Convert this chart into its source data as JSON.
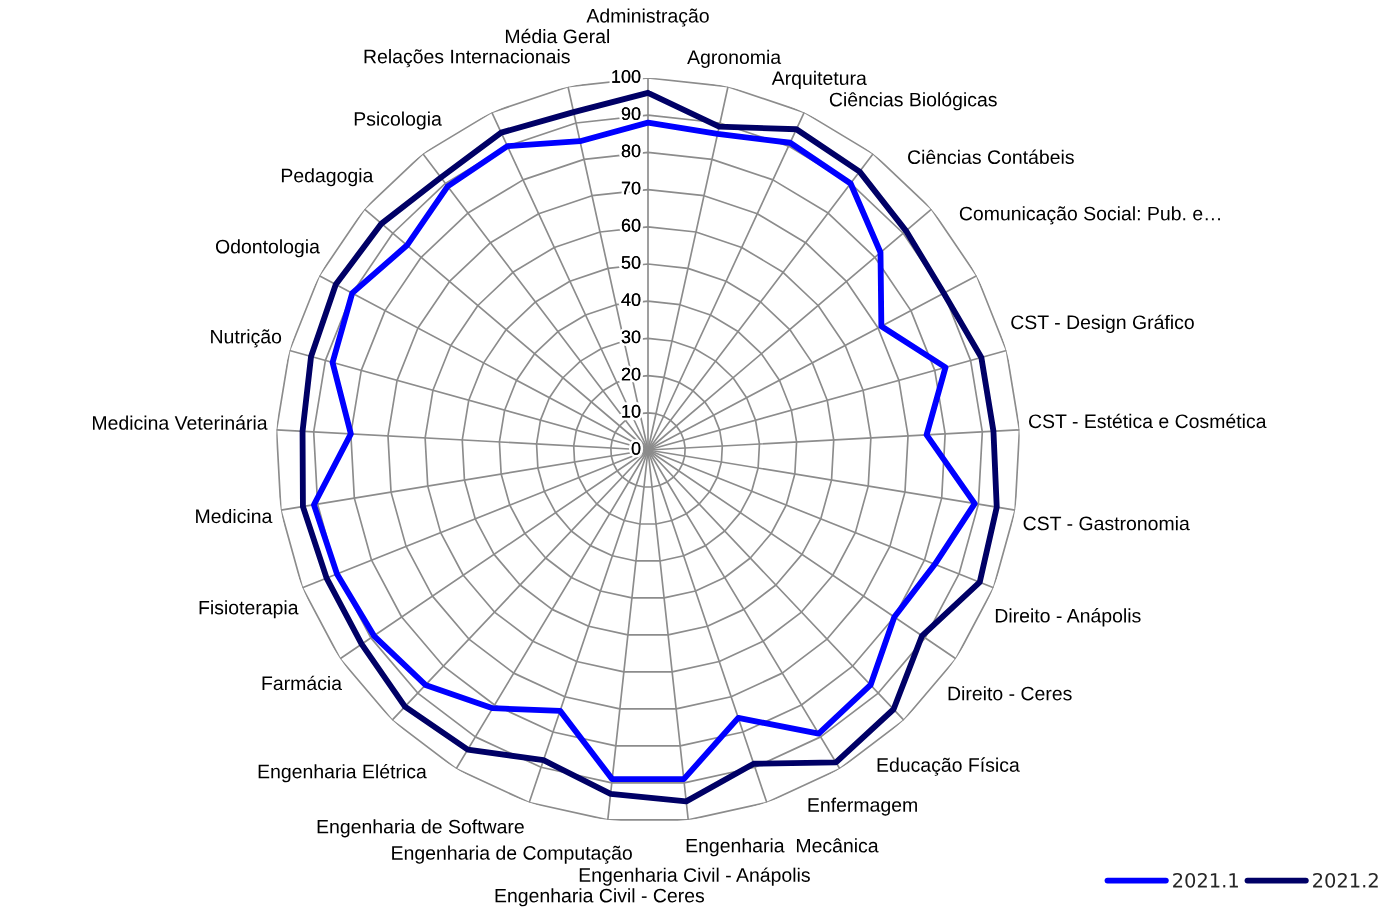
{
  "chart_data": {
    "type": "radar",
    "categories": [
      "Administração",
      "Agronomia",
      "Arquitetura",
      "Ciências Biológicas",
      "Ciências Contábeis",
      "Comunicação Social: Pub. e…",
      "CST - Design Gráfico",
      "CST - Estética e Cosmética",
      "CST - Gastronomia",
      "Direito - Anápolis",
      "Direito - Ceres",
      "Educação Física",
      "Enfermagem",
      "Engenharia  Mecânica",
      "Engenharia Civil - Anápolis",
      "Engenharia Civil - Ceres",
      "Engenharia de Computação",
      "Engenharia de Software",
      "Engenharia Elétrica",
      "Farmácia",
      "Fisioterapia",
      "Medicina",
      "Medicina Veterinária",
      "Nutrição",
      "Odontologia",
      "Pedagogia",
      "Psicologia",
      "Relações Internacionais",
      "Média Geral"
    ],
    "series": [
      {
        "name": "2021.1",
        "color": "#0000ff",
        "values": [
          88,
          87,
          91,
          90,
          82,
          71,
          83,
          75,
          89,
          83,
          80,
          87,
          89,
          76,
          89,
          89,
          74,
          81,
          87,
          89,
          90,
          91,
          80,
          88,
          90,
          85,
          89,
          90,
          85
        ]
      },
      {
        "name": "2021.2",
        "color": "#000066",
        "values": [
          96,
          89,
          95,
          94,
          91,
          90,
          93,
          93,
          95,
          96,
          89,
          96,
          98,
          89,
          95,
          93,
          88,
          94,
          95,
          93,
          93,
          94,
          93,
          94,
          95,
          94,
          92,
          94,
          93
        ]
      }
    ],
    "ylim": [
      0,
      100
    ],
    "yticks": [
      0,
      10,
      20,
      30,
      40,
      50,
      60,
      70,
      80,
      90,
      100
    ],
    "grid": true,
    "legend": "bottom right"
  }
}
